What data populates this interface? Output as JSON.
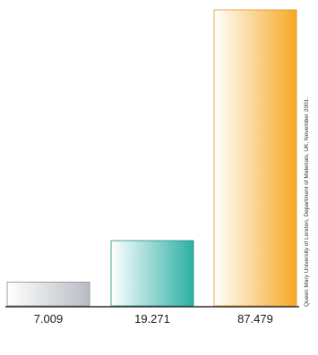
{
  "chart_data": {
    "type": "bar",
    "title": "",
    "xlabel": "",
    "ylabel": "",
    "categories": [
      "7.009",
      "19.271",
      "87.479"
    ],
    "values": [
      7.009,
      19.271,
      87.479
    ],
    "ylim": [
      0,
      87.479
    ],
    "grid": false,
    "legend": "none",
    "bar_colors": [
      {
        "light": "#ffffff",
        "dark": "#b9bcc3",
        "edge": "#8a8d94"
      },
      {
        "light": "#ffffff",
        "dark": "#2bb0a4",
        "edge": "#1d8f85"
      },
      {
        "light": "#ffffff",
        "dark": "#f7a823",
        "edge": "#e3941a"
      }
    ]
  },
  "source_note": "Queen Mary University of London, Department of Materials, UK, November 2001."
}
